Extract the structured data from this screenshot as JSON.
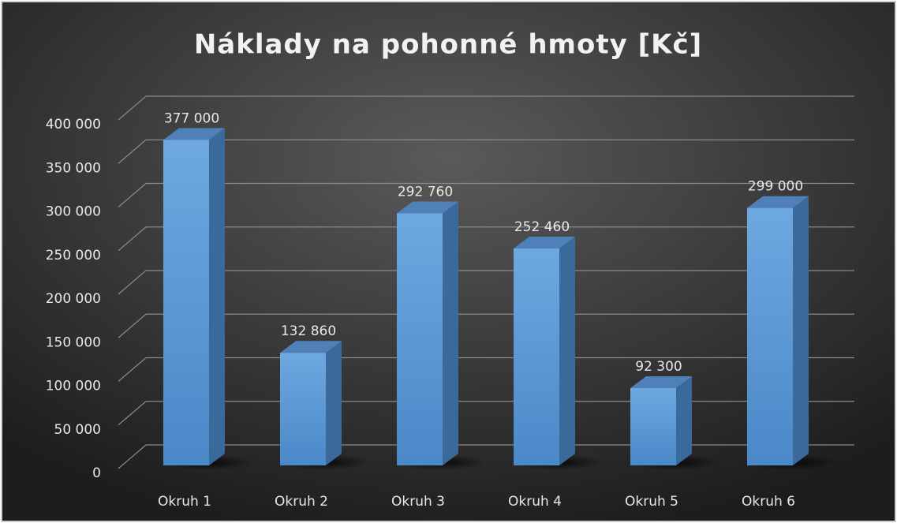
{
  "chart_data": {
    "type": "bar3d",
    "title": "Náklady na pohonné hmoty [Kč]",
    "categories": [
      "Okruh 1",
      "Okruh 2",
      "Okruh 3",
      "Okruh 4",
      "Okruh 5",
      "Okruh 6"
    ],
    "values": [
      377000,
      132860,
      292760,
      252460,
      92300,
      299000
    ],
    "value_labels": [
      "377 000",
      "132 860",
      "292 760",
      "252 460",
      "92 300",
      "299 000"
    ],
    "color": "#5b9bd5",
    "ylim": [
      0,
      400000
    ],
    "yticks": [
      0,
      {
        "value": 50000,
        "label": "50 000"
      },
      {
        "value": 100000,
        "label": "100 000"
      },
      {
        "value": 150000,
        "label": "150 000"
      },
      {
        "value": 200000,
        "label": "200 000"
      },
      {
        "value": 250000,
        "label": "250 000"
      },
      {
        "value": 300000,
        "label": "300 000"
      },
      {
        "value": 350000,
        "label": "350 000"
      },
      {
        "value": 400000,
        "label": "400 000"
      }
    ],
    "grid": true
  }
}
